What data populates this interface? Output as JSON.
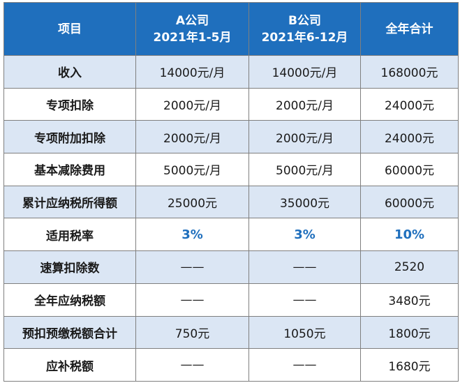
{
  "header": {
    "item": "项目",
    "a_company_name": "A公司",
    "a_company_period": "2021年1-5月",
    "b_company_name": "B公司",
    "b_company_period": "2021年6-12月",
    "total": "全年合计"
  },
  "rows": [
    {
      "label": "收入",
      "a": "14000元/月",
      "b": "14000元/月",
      "total": "168000元"
    },
    {
      "label": "专项扣除",
      "a": "2000元/月",
      "b": "2000元/月",
      "total": "24000元"
    },
    {
      "label": "专项附加扣除",
      "a": "2000元/月",
      "b": "2000元/月",
      "total": "24000元"
    },
    {
      "label": "基本减除费用",
      "a": "5000元/月",
      "b": "5000元/月",
      "total": "60000元"
    },
    {
      "label": "累计应纳税所得额",
      "a": "25000元",
      "b": "35000元",
      "total": "60000元"
    },
    {
      "label": "适用税率",
      "a": "3%",
      "b": "3%",
      "total": "10%"
    },
    {
      "label": "速算扣除数",
      "a": "——",
      "b": "——",
      "total": "2520"
    },
    {
      "label": "全年应纳税额",
      "a": "——",
      "b": "——",
      "total": "3480元"
    },
    {
      "label": "预扣预缴税额合计",
      "a": "750元",
      "b": "1050元",
      "total": "1800元"
    },
    {
      "label": "应补税额",
      "a": "——",
      "b": "——",
      "total": "1680元"
    }
  ],
  "colors": {
    "header_bg": "#1f6fbd",
    "stripe_bg": "#dbe6f4",
    "rate_text": "#1f6fbd"
  }
}
